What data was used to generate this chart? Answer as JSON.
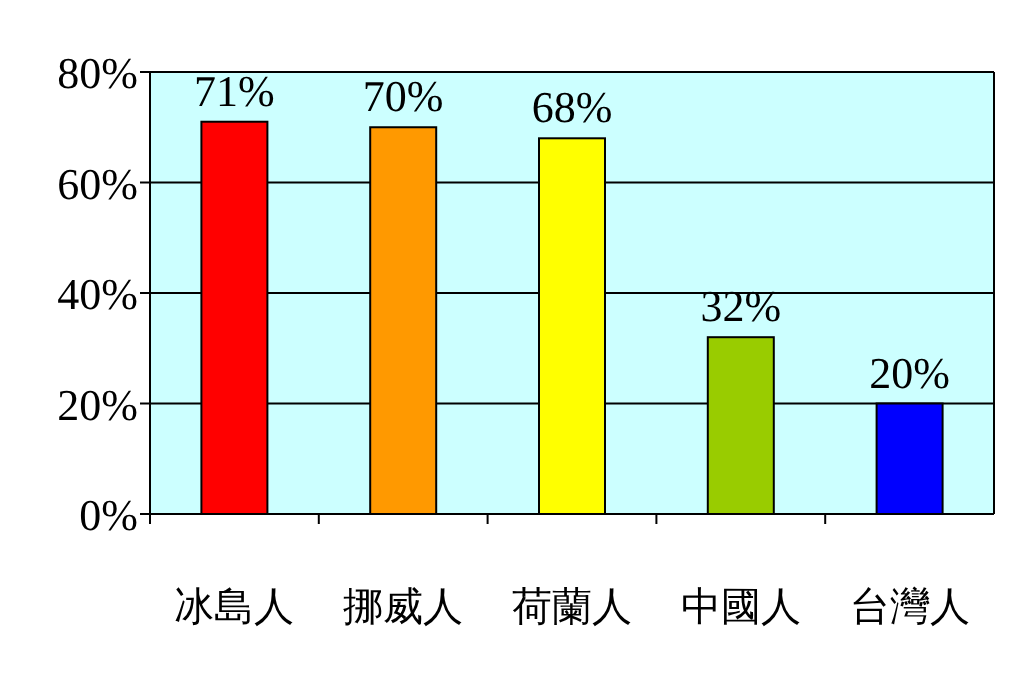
{
  "chart_data": {
    "type": "bar",
    "categories": [
      "冰島人",
      "挪威人",
      "荷蘭人",
      "中國人",
      "台灣人"
    ],
    "values": [
      71,
      70,
      68,
      32,
      20
    ],
    "colors": [
      "#ff0000",
      "#ff9900",
      "#ffff00",
      "#99cc00",
      "#0000ff"
    ],
    "value_labels": [
      "71%",
      "70%",
      "68%",
      "32%",
      "20%"
    ],
    "ylim": [
      0,
      80
    ],
    "yticks": [
      {
        "value": 0,
        "label": "0%"
      },
      {
        "value": 20,
        "label": "20%"
      },
      {
        "value": 40,
        "label": "40%"
      },
      {
        "value": 60,
        "label": "60%"
      },
      {
        "value": 80,
        "label": "80%"
      }
    ],
    "grid": "y"
  }
}
